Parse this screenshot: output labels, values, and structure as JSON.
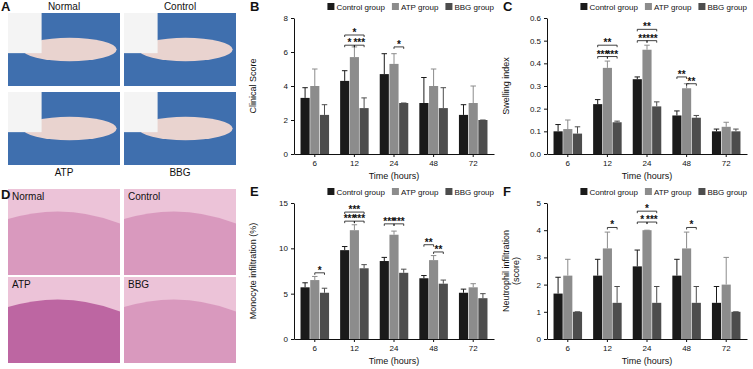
{
  "image_panels": [
    {
      "panel_label": "A",
      "images": [
        "Normal",
        "Control",
        "ATP",
        "BBG"
      ]
    },
    {
      "panel_label": "D",
      "images": [
        "Normal",
        "Control",
        "ATP",
        "BBG"
      ]
    }
  ],
  "chart_data": [
    {
      "type": "bar",
      "panel_label": "B",
      "x_label": "Time (hours)",
      "y_label": "Clinical Score",
      "categories": [
        "6",
        "12",
        "24",
        "48",
        "72"
      ],
      "series": [
        {
          "name": "Control group",
          "color": "#1a1a1a",
          "values": [
            3.3,
            4.3,
            4.7,
            3.0,
            2.3
          ],
          "errors": [
            0.6,
            0.6,
            1.2,
            1.5,
            0.6
          ]
        },
        {
          "name": "ATP group",
          "color": "#8c8c8c",
          "values": [
            4.0,
            5.7,
            5.3,
            4.0,
            3.0
          ],
          "errors": [
            1.0,
            0.6,
            0.6,
            1.0,
            1.0
          ]
        },
        {
          "name": "BBG group",
          "color": "#4d4d4d",
          "values": [
            2.3,
            2.7,
            3.0,
            2.7,
            2.0
          ],
          "errors": [
            0.6,
            0.6,
            0.0,
            1.2,
            0.0
          ]
        }
      ],
      "ylim": [
        0,
        8
      ],
      "yticks": [
        0,
        2,
        4,
        6,
        8
      ],
      "legend": "top",
      "annotations": [
        {
          "category": "12",
          "from": 0,
          "to": 2,
          "y": 7.0,
          "text": "*"
        },
        {
          "category": "12",
          "from": 0,
          "to": 1,
          "y": 6.4,
          "text": "*"
        },
        {
          "category": "12",
          "from": 1,
          "to": 2,
          "y": 6.4,
          "text": "***"
        },
        {
          "category": "24",
          "from": 1,
          "to": 2,
          "y": 6.3,
          "text": "*"
        }
      ]
    },
    {
      "type": "bar",
      "panel_label": "C",
      "x_label": "Time (hours)",
      "y_label": "Swelling index",
      "categories": [
        "6",
        "12",
        "24",
        "48",
        "72"
      ],
      "series": [
        {
          "name": "Control group",
          "color": "#1a1a1a",
          "values": [
            0.1,
            0.22,
            0.33,
            0.17,
            0.1
          ],
          "errors": [
            0.03,
            0.02,
            0.01,
            0.02,
            0.01
          ]
        },
        {
          "name": "ATP group",
          "color": "#8c8c8c",
          "values": [
            0.11,
            0.38,
            0.46,
            0.29,
            0.12
          ],
          "errors": [
            0.04,
            0.03,
            0.02,
            0.02,
            0.02
          ]
        },
        {
          "name": "BBG group",
          "color": "#4d4d4d",
          "values": [
            0.09,
            0.14,
            0.21,
            0.16,
            0.1
          ],
          "errors": [
            0.03,
            0.005,
            0.02,
            0.01,
            0.01
          ]
        }
      ],
      "ylim": [
        0,
        0.6
      ],
      "yticks": [
        {
          "value": 0,
          "label": "0.0"
        },
        0.1,
        0.2,
        0.3,
        0.4,
        0.5,
        0.6
      ],
      "legend": "top",
      "annotations": [
        {
          "category": "12",
          "from": 0,
          "to": 2,
          "y": 0.48,
          "text": "**"
        },
        {
          "category": "12",
          "from": 0,
          "to": 1,
          "y": 0.43,
          "text": "***"
        },
        {
          "category": "12",
          "from": 1,
          "to": 2,
          "y": 0.43,
          "text": "***"
        },
        {
          "category": "24",
          "from": 0,
          "to": 2,
          "y": 0.55,
          "text": "**"
        },
        {
          "category": "24",
          "from": 0,
          "to": 1,
          "y": 0.5,
          "text": "**"
        },
        {
          "category": "24",
          "from": 1,
          "to": 2,
          "y": 0.5,
          "text": "***"
        },
        {
          "category": "48",
          "from": 0,
          "to": 1,
          "y": 0.34,
          "text": "**"
        },
        {
          "category": "48",
          "from": 1,
          "to": 2,
          "y": 0.31,
          "text": "**"
        }
      ]
    },
    {
      "type": "bar",
      "panel_label": "E",
      "x_label": "Time (hours)",
      "y_label": "Monocyte infiltration (%)",
      "categories": [
        "6",
        "12",
        "24",
        "48",
        "72"
      ],
      "series": [
        {
          "name": "Control group",
          "color": "#1a1a1a",
          "values": [
            5.7,
            9.8,
            8.6,
            6.7,
            5.1
          ],
          "errors": [
            0.5,
            0.4,
            0.4,
            0.3,
            0.4
          ]
        },
        {
          "name": "ATP group",
          "color": "#8c8c8c",
          "values": [
            6.5,
            12.0,
            11.5,
            8.7,
            5.7
          ],
          "errors": [
            0.4,
            0.6,
            0.4,
            0.5,
            0.4
          ]
        },
        {
          "name": "BBG group",
          "color": "#4d4d4d",
          "values": [
            5.1,
            7.8,
            7.3,
            6.1,
            4.5
          ],
          "errors": [
            0.5,
            0.4,
            0.4,
            0.4,
            0.5
          ]
        }
      ],
      "ylim": [
        0,
        15
      ],
      "yticks": [
        0,
        5,
        10,
        15
      ],
      "legend": "top",
      "annotations": [
        {
          "category": "6",
          "from": 1,
          "to": 2,
          "y": 7.3,
          "text": "*"
        },
        {
          "category": "12",
          "from": 0,
          "to": 2,
          "y": 14.0,
          "text": "***"
        },
        {
          "category": "12",
          "from": 0,
          "to": 1,
          "y": 13.0,
          "text": "***"
        },
        {
          "category": "12",
          "from": 1,
          "to": 2,
          "y": 13.0,
          "text": "***"
        },
        {
          "category": "24",
          "from": 0,
          "to": 1,
          "y": 12.7,
          "text": "***"
        },
        {
          "category": "24",
          "from": 1,
          "to": 2,
          "y": 12.7,
          "text": "***"
        },
        {
          "category": "48",
          "from": 0,
          "to": 1,
          "y": 10.4,
          "text": "**"
        },
        {
          "category": "48",
          "from": 1,
          "to": 2,
          "y": 9.6,
          "text": "**"
        }
      ]
    },
    {
      "type": "bar",
      "panel_label": "F",
      "x_label": "Time (hours)",
      "y_label": [
        "Neutrophil infiltration",
        "(score)"
      ],
      "categories": [
        "6",
        "12",
        "24",
        "48",
        "72"
      ],
      "series": [
        {
          "name": "Control group",
          "color": "#1a1a1a",
          "values": [
            1.67,
            2.33,
            2.67,
            2.33,
            1.33
          ],
          "errors": [
            0.6,
            0.6,
            0.6,
            0.6,
            0.6
          ]
        },
        {
          "name": "ATP group",
          "color": "#8c8c8c",
          "values": [
            2.33,
            3.33,
            4.0,
            3.33,
            2.0
          ],
          "errors": [
            0.6,
            0.6,
            0.0,
            0.6,
            1.0
          ]
        },
        {
          "name": "BBG group",
          "color": "#4d4d4d",
          "values": [
            1.0,
            1.33,
            1.33,
            1.33,
            1.0
          ],
          "errors": [
            0.0,
            0.6,
            0.6,
            0.6,
            0.0
          ]
        }
      ],
      "ylim": [
        0,
        5
      ],
      "yticks": [
        0,
        1,
        2,
        3,
        4,
        5
      ],
      "legend": "top",
      "annotations": [
        {
          "category": "12",
          "from": 1,
          "to": 2,
          "y": 4.1,
          "text": "*"
        },
        {
          "category": "24",
          "from": 0,
          "to": 2,
          "y": 4.7,
          "text": "*"
        },
        {
          "category": "24",
          "from": 0,
          "to": 1,
          "y": 4.3,
          "text": "*"
        },
        {
          "category": "24",
          "from": 1,
          "to": 2,
          "y": 4.3,
          "text": "***"
        },
        {
          "category": "48",
          "from": 1,
          "to": 2,
          "y": 4.1,
          "text": "*"
        }
      ]
    }
  ]
}
